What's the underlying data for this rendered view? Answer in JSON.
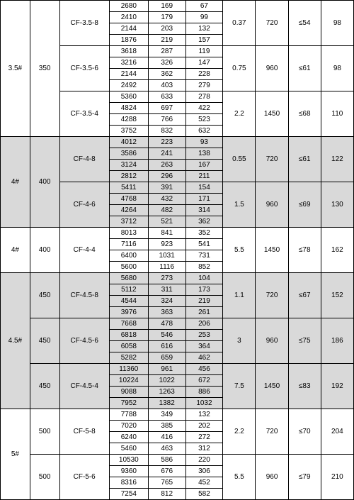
{
  "groups": [
    {
      "shade": false,
      "col1": {
        "label": "3.5#",
        "span": 12
      },
      "col2": {
        "label": "350",
        "span": 12
      },
      "blocks": [
        {
          "model": "CF-3.5-8",
          "rows": [
            [
              "2680",
              "169",
              "67"
            ],
            [
              "2410",
              "179",
              "99"
            ],
            [
              "2144",
              "203",
              "132"
            ],
            [
              "1876",
              "219",
              "157"
            ]
          ],
          "c7": "0.37",
          "c8": "720",
          "c9": "≤54",
          "c10": "98"
        },
        {
          "model": "CF-3.5-6",
          "rows": [
            [
              "3618",
              "287",
              "119"
            ],
            [
              "3216",
              "326",
              "147"
            ],
            [
              "2144",
              "362",
              "228"
            ],
            [
              "2492",
              "403",
              "279"
            ]
          ],
          "c7": "0.75",
          "c8": "960",
          "c9": "≤61",
          "c10": "98"
        },
        {
          "model": "CF-3.5-4",
          "rows": [
            [
              "5360",
              "633",
              "278"
            ],
            [
              "4824",
              "697",
              "422"
            ],
            [
              "4288",
              "766",
              "523"
            ],
            [
              "3752",
              "832",
              "632"
            ]
          ],
          "c7": "2.2",
          "c8": "1450",
          "c9": "≤68",
          "c10": "110"
        }
      ]
    },
    {
      "shade": true,
      "col1": {
        "label": "4#",
        "span": 8
      },
      "col2": {
        "label": "400",
        "span": 8
      },
      "blocks": [
        {
          "model": "CF-4-8",
          "rows": [
            [
              "4012",
              "223",
              "93"
            ],
            [
              "3586",
              "241",
              "138"
            ],
            [
              "3124",
              "263",
              "167"
            ],
            [
              "2812",
              "296",
              "211"
            ]
          ],
          "c7": "0.55",
          "c8": "720",
          "c9": "≤61",
          "c10": "122"
        },
        {
          "model": "CF-4-6",
          "rows": [
            [
              "5411",
              "391",
              "154"
            ],
            [
              "4768",
              "432",
              "171"
            ],
            [
              "4264",
              "482",
              "314"
            ],
            [
              "3712",
              "521",
              "362"
            ]
          ],
          "c7": "1.5",
          "c8": "960",
          "c9": "≤69",
          "c10": "130"
        }
      ]
    },
    {
      "shade": false,
      "col1": {
        "label": "4#",
        "span": 4
      },
      "col2": {
        "label": "400",
        "span": 4
      },
      "blocks": [
        {
          "model": "CF-4-4",
          "rows": [
            [
              "8013",
              "841",
              "352"
            ],
            [
              "7116",
              "923",
              "541"
            ],
            [
              "6400",
              "1031",
              "731"
            ],
            [
              "5600",
              "1116",
              "852"
            ]
          ],
          "c7": "5.5",
          "c8": "1450",
          "c9": "≤78",
          "c10": "162"
        }
      ]
    },
    {
      "shade": true,
      "col1": {
        "label": "4.5#",
        "span": 12
      },
      "col2Blocks": [
        {
          "label": "450",
          "span": 4
        },
        {
          "label": "450",
          "span": 4
        },
        {
          "label": "450",
          "span": 4
        }
      ],
      "blocks": [
        {
          "model": "CF-4.5-8",
          "rows": [
            [
              "5680",
              "273",
              "104"
            ],
            [
              "5112",
              "311",
              "173"
            ],
            [
              "4544",
              "324",
              "219"
            ],
            [
              "3976",
              "363",
              "261"
            ]
          ],
          "c7": "1.1",
          "c8": "720",
          "c9": "≤67",
          "c10": "152"
        },
        {
          "model": "CF-4.5-6",
          "rows": [
            [
              "7668",
              "478",
              "206"
            ],
            [
              "6818",
              "546",
              "253"
            ],
            [
              "6058",
              "616",
              "364"
            ],
            [
              "5282",
              "659",
              "462"
            ]
          ],
          "c7": "3",
          "c8": "960",
          "c9": "≤75",
          "c10": "186"
        },
        {
          "model": "CF-4.5-4",
          "rows": [
            [
              "11360",
              "961",
              "456"
            ],
            [
              "10224",
              "1022",
              "672"
            ],
            [
              "9088",
              "1263",
              "886"
            ],
            [
              "7952",
              "1382",
              "1032"
            ]
          ],
          "c7": "7.5",
          "c8": "1450",
          "c9": "≤83",
          "c10": "192"
        }
      ]
    },
    {
      "shade": false,
      "col1": {
        "label": "5#",
        "span": 8
      },
      "col2Blocks": [
        {
          "label": "500",
          "span": 4
        },
        {
          "label": "500",
          "span": 4
        }
      ],
      "blocks": [
        {
          "model": "CF-5-8",
          "rows": [
            [
              "7788",
              "349",
              "132"
            ],
            [
              "7020",
              "385",
              "202"
            ],
            [
              "6240",
              "416",
              "272"
            ],
            [
              "5460",
              "463",
              "312"
            ]
          ],
          "c7": "2.2",
          "c8": "720",
          "c9": "≤70",
          "c10": "204"
        },
        {
          "model": "CF-5-6",
          "rows": [
            [
              "10530",
              "586",
              "220"
            ],
            [
              "9360",
              "676",
              "306"
            ],
            [
              "8316",
              "765",
              "452"
            ],
            [
              "7254",
              "812",
              "582"
            ]
          ],
          "c7": "5.5",
          "c8": "960",
          "c9": "≤79",
          "c10": "210"
        }
      ]
    }
  ]
}
